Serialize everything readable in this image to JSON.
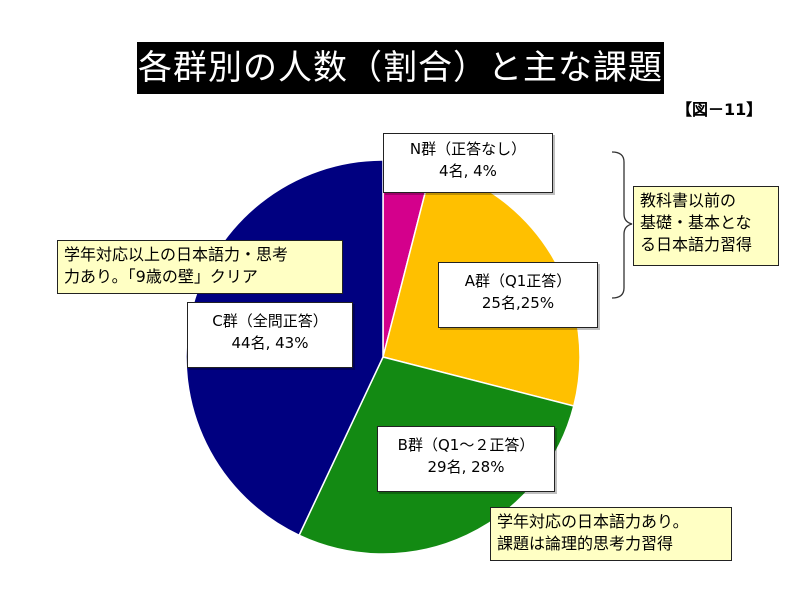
{
  "title": "各群別の人数（割合）と主な課題",
  "figure_label": "【図－11】",
  "chart_data": {
    "type": "pie",
    "title": "各群別の人数（割合）と主な課題",
    "slices": [
      {
        "name": "N群（正答なし）",
        "count": "4名",
        "percent": 4,
        "pct_label": "4%",
        "color": "#d4008c"
      },
      {
        "name": "A群（Q1正答）",
        "count": "25名",
        "percent": 25,
        "pct_label": "25%",
        "color": "#ffc000"
      },
      {
        "name": "B群（Q1～2正答）",
        "count": "29名",
        "percent": 28,
        "pct_label": "28%",
        "color": "#138a13"
      },
      {
        "name": "C群（全問正答）",
        "count": "44名",
        "percent": 43,
        "pct_label": "43%",
        "color": "#000080"
      }
    ],
    "start_angle_deg": 0,
    "direction": "clockwise"
  },
  "labels": {
    "n": {
      "line1": "N群（正答なし）",
      "line2": "4名, 4%"
    },
    "a": {
      "line1": "A群（Q1正答）",
      "line2": "25名,25%"
    },
    "b": {
      "line1": "B群（Q1～２正答）",
      "line2": "29名, 28%"
    },
    "c": {
      "line1": "C群（全問正答）",
      "line2": "44名, 43%"
    }
  },
  "notes": {
    "na": {
      "line1": "教科書以前の",
      "line2": "基礎・基本とな",
      "line3": "る日本語力習得"
    },
    "c": {
      "line1": "学年対応以上の日本語力・思考",
      "line2": "力あり。「9歳の壁」クリア"
    },
    "b": {
      "line1": "学年対応の日本語力あり。",
      "line2": "課題は論理的思考力習得"
    }
  }
}
